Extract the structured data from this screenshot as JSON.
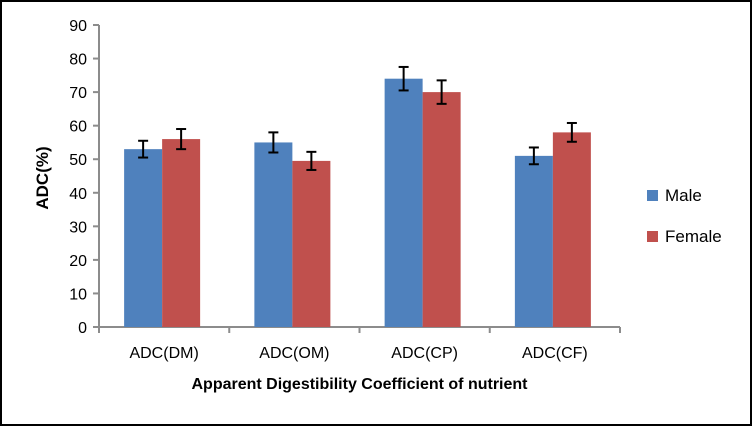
{
  "chart_data": {
    "type": "bar",
    "title": "",
    "categories": [
      "ADC(DM)",
      "ADC(OM)",
      "ADC(CP)",
      "ADC(CF)"
    ],
    "series": [
      {
        "name": "Male",
        "color": "#4F81BD",
        "values": [
          53,
          55,
          74,
          51
        ],
        "errors": [
          2.5,
          3.0,
          3.5,
          2.5
        ]
      },
      {
        "name": "Female",
        "color": "#C0504D",
        "values": [
          56,
          49.5,
          70,
          58
        ],
        "errors": [
          3.0,
          2.7,
          3.5,
          2.8
        ]
      }
    ],
    "xlabel": "Apparent Digestibility Coefficient of nutrient",
    "ylabel": "ADC(%)",
    "ylim": [
      0,
      90
    ],
    "yticks": [
      0,
      10,
      20,
      30,
      40,
      50,
      60,
      70,
      80,
      90
    ],
    "grid": false,
    "legend_position": "right",
    "error_bars": true
  },
  "colors": {
    "male": "#4F81BD",
    "female": "#C0504D",
    "axis": "#8C8C8C",
    "error_bar": "#000000",
    "text": "#000000",
    "background": "#FFFFFF",
    "border": "#000000"
  }
}
